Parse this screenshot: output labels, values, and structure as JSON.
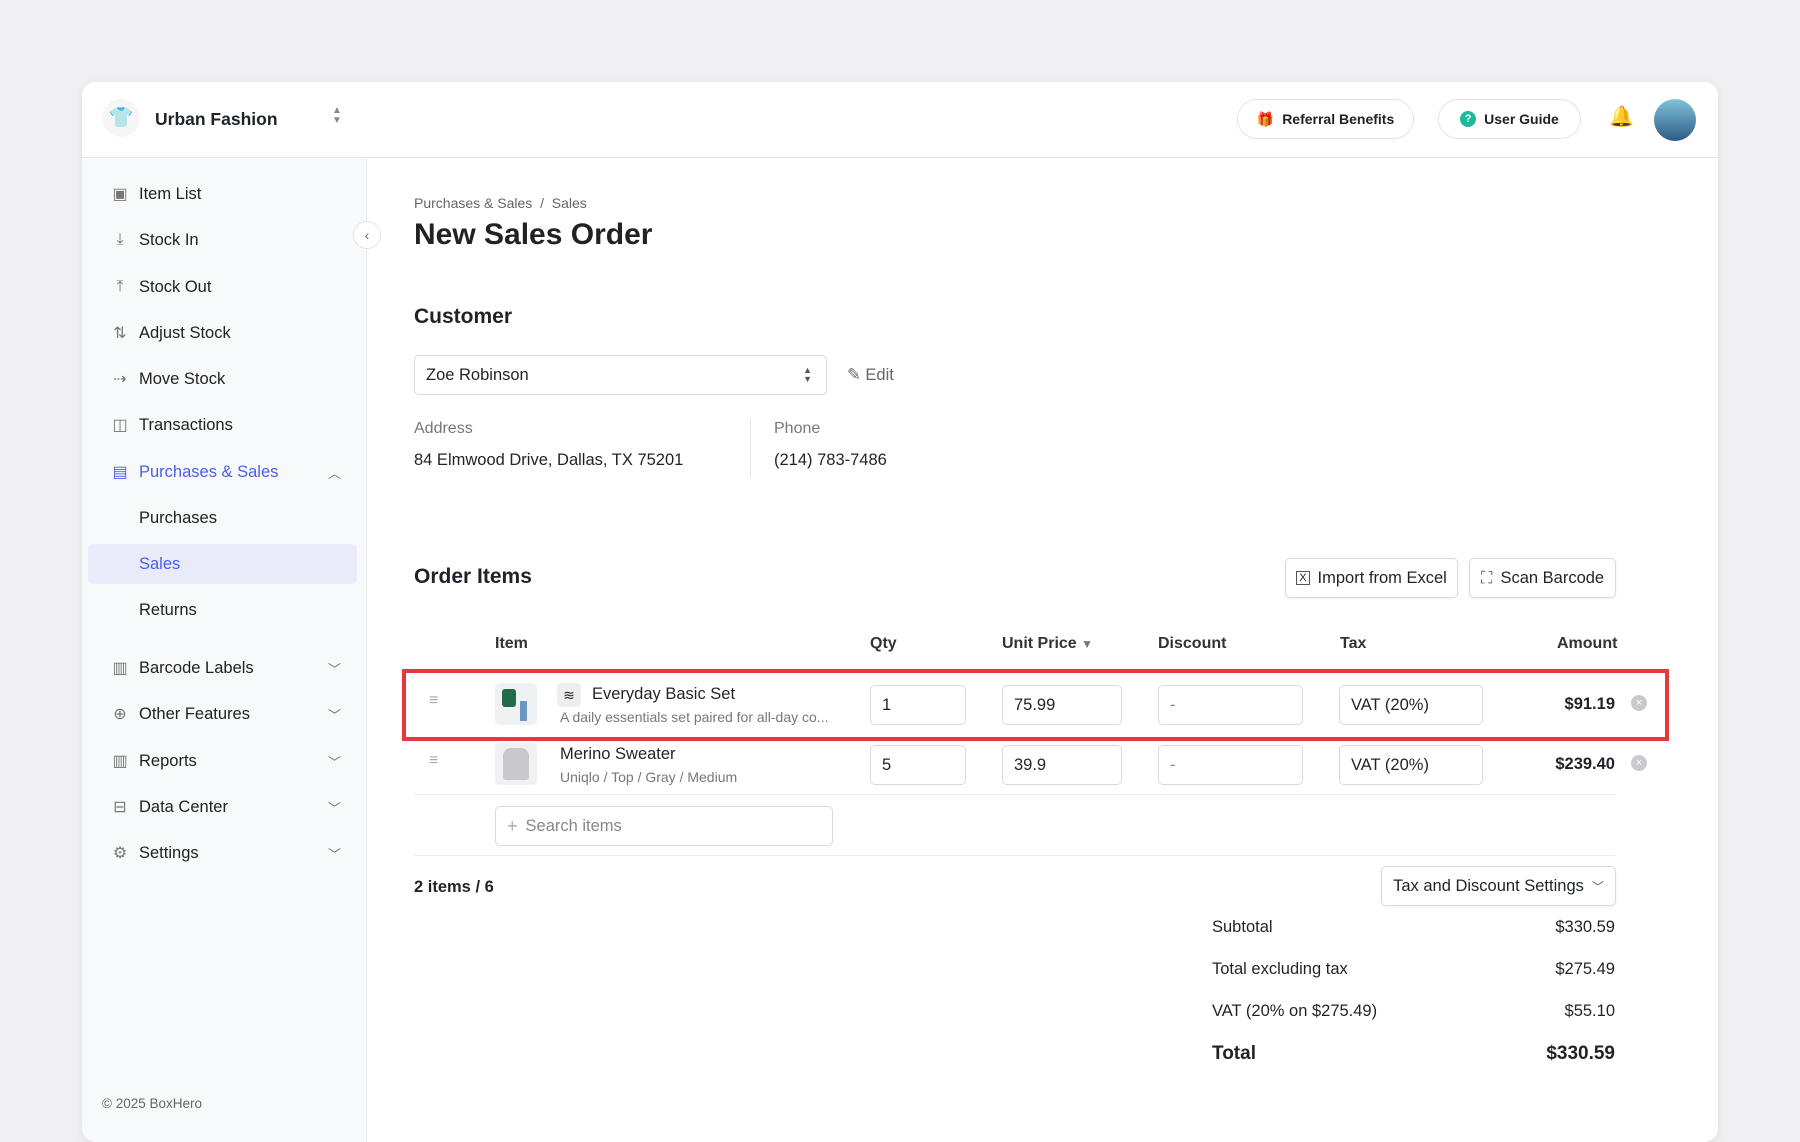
{
  "header": {
    "brand": "Urban Fashion",
    "referral": "Referral Benefits",
    "guide": "User Guide"
  },
  "sidebar": {
    "items": [
      {
        "label": "Item List",
        "icon": "box-icon"
      },
      {
        "label": "Stock In",
        "icon": "arrow-down-icon"
      },
      {
        "label": "Stock Out",
        "icon": "arrow-up-icon"
      },
      {
        "label": "Adjust Stock",
        "icon": "arrows-updown-icon"
      },
      {
        "label": "Move Stock",
        "icon": "arrow-right-icon"
      },
      {
        "label": "Transactions",
        "icon": "transactions-icon"
      },
      {
        "label": "Purchases & Sales",
        "icon": "document-icon"
      },
      {
        "label": "Purchases"
      },
      {
        "label": "Sales"
      },
      {
        "label": "Returns"
      },
      {
        "label": "Barcode Labels",
        "icon": "barcode-icon"
      },
      {
        "label": "Other Features",
        "icon": "plus-circle-icon"
      },
      {
        "label": "Reports",
        "icon": "chart-icon"
      },
      {
        "label": "Data Center",
        "icon": "database-icon"
      },
      {
        "label": "Settings",
        "icon": "gear-icon"
      }
    ],
    "footer": "© 2025 BoxHero"
  },
  "main": {
    "breadcrumb": [
      "Purchases & Sales",
      "Sales"
    ],
    "title": "New Sales Order",
    "customer": {
      "heading": "Customer",
      "name": "Zoe Robinson",
      "edit": "Edit",
      "address_label": "Address",
      "address": "84 Elmwood Drive, Dallas, TX 75201",
      "phone_label": "Phone",
      "phone": "(214) 783-7486"
    },
    "order": {
      "heading": "Order Items",
      "import": "Import from Excel",
      "scan": "Scan Barcode",
      "columns": [
        "Item",
        "Qty",
        "Unit Price",
        "Discount",
        "Tax",
        "Amount"
      ],
      "rows": [
        {
          "name": "Everyday Basic Set",
          "sub": "A daily essentials set paired for all-day co...",
          "qty": "1",
          "price": "75.99",
          "discount": "-",
          "tax": "VAT (20%)",
          "amount": "$91.19"
        },
        {
          "name": "Merino Sweater",
          "sub": "Uniqlo / Top / Gray / Medium",
          "qty": "5",
          "price": "39.9",
          "discount": "-",
          "tax": "VAT (20%)",
          "amount": "$239.40"
        }
      ],
      "search_placeholder": "Search items",
      "count": "2 items / 6",
      "tax_settings": "Tax and Discount Settings"
    },
    "summary": {
      "subtotal_label": "Subtotal",
      "subtotal": "$330.59",
      "excl_label": "Total excluding tax",
      "excl": "$275.49",
      "vat_label": "VAT (20% on $275.49)",
      "vat": "$55.10",
      "total_label": "Total",
      "total": "$330.59"
    }
  },
  "colors": {
    "accent": "#4a5ee8",
    "highlight": "#e5393d"
  }
}
